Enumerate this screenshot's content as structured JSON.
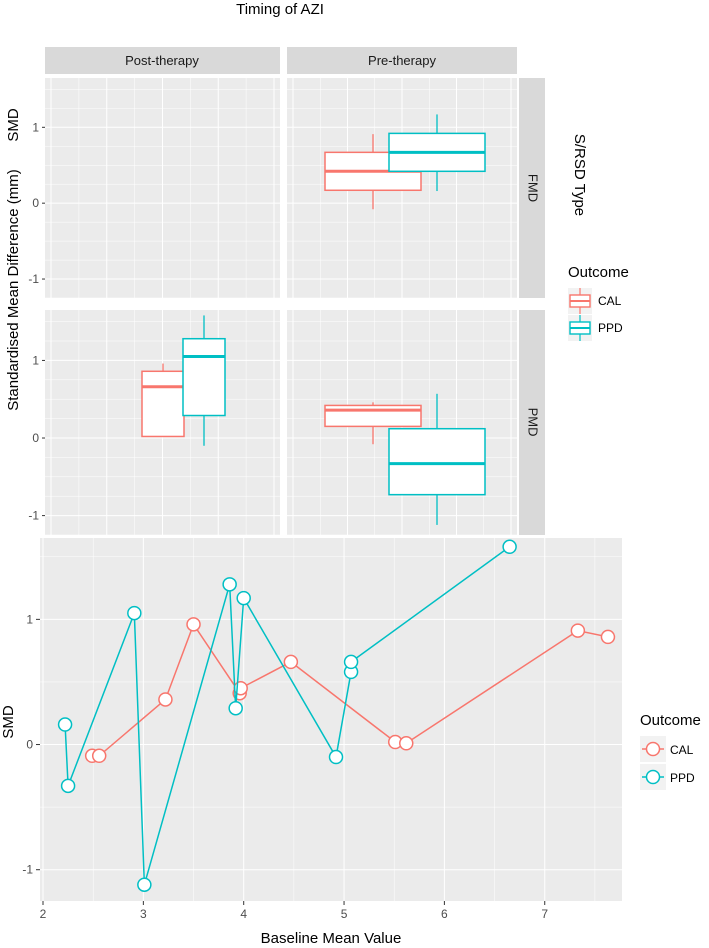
{
  "title": "Timing of AZI",
  "facet_columns": [
    "Post-therapy",
    "Pre-therapy"
  ],
  "facet_rows": [
    "FMD",
    "PMD"
  ],
  "facet_row_title": "S/RSD Type",
  "top_ylabel": "Standardised Mean Difference (mm)",
  "top_ylabel_short": "SMD",
  "bottom_ylabel": "SMD",
  "bottom_xlabel": "Baseline Mean Value",
  "legend_title": "Outcome",
  "legend_entries": [
    "CAL",
    "PPD"
  ],
  "colors": {
    "CAL": "#F8766D",
    "PPD": "#00BFC4",
    "panel": "#EBEBEB",
    "strip": "#D9D9D9"
  },
  "chart_data": [
    {
      "type": "box",
      "title": "Timing of AZI",
      "ylim": [
        -1.25,
        1.65
      ],
      "yticks": [
        -1,
        0,
        1
      ],
      "groups": [
        "CAL",
        "PPD"
      ],
      "panels": [
        {
          "column": "Post-therapy",
          "row": "FMD",
          "boxes": []
        },
        {
          "column": "Pre-therapy",
          "row": "FMD",
          "boxes": [
            {
              "group": "CAL",
              "min": -0.08,
              "q1": 0.17,
              "median": 0.42,
              "q3": 0.67,
              "max": 0.91
            },
            {
              "group": "PPD",
              "min": 0.16,
              "q1": 0.42,
              "median": 0.67,
              "q3": 0.92,
              "max": 1.17
            }
          ]
        },
        {
          "column": "Post-therapy",
          "row": "PMD",
          "boxes": [
            {
              "group": "CAL",
              "min": 0.02,
              "q1": 0.02,
              "median": 0.66,
              "q3": 0.86,
              "max": 0.96
            },
            {
              "group": "PPD",
              "min": -0.1,
              "q1": 0.29,
              "median": 1.05,
              "q3": 1.28,
              "max": 1.58
            }
          ]
        },
        {
          "column": "Pre-therapy",
          "row": "PMD",
          "boxes": [
            {
              "group": "CAL",
              "min": -0.08,
              "q1": 0.15,
              "median": 0.36,
              "q3": 0.42,
              "max": 0.46
            },
            {
              "group": "PPD",
              "min": -1.12,
              "q1": -0.73,
              "median": -0.33,
              "q3": 0.12,
              "max": 0.57
            }
          ]
        }
      ]
    },
    {
      "type": "line",
      "xlabel": "Baseline Mean Value",
      "ylabel": "SMD",
      "xlim": [
        1.97,
        7.77
      ],
      "ylim": [
        -1.25,
        1.65
      ],
      "xticks": [
        2,
        3,
        4,
        5,
        6,
        7
      ],
      "yticks": [
        -1,
        0,
        1
      ],
      "series": [
        {
          "name": "CAL",
          "x": [
            2.49,
            2.56,
            3.22,
            3.5,
            3.96,
            3.97,
            4.47,
            5.51,
            5.62,
            7.33,
            7.63
          ],
          "y": [
            -0.09,
            -0.09,
            0.36,
            0.96,
            0.41,
            0.45,
            0.66,
            0.02,
            0.01,
            0.91,
            0.86
          ]
        },
        {
          "name": "PPD",
          "x": [
            2.22,
            2.25,
            2.91,
            3.01,
            3.86,
            3.92,
            4.0,
            4.92,
            5.07,
            5.07,
            6.65
          ],
          "y": [
            0.16,
            -0.33,
            1.05,
            -1.12,
            1.28,
            0.29,
            1.17,
            -0.1,
            0.58,
            0.66,
            1.58
          ]
        }
      ]
    }
  ]
}
